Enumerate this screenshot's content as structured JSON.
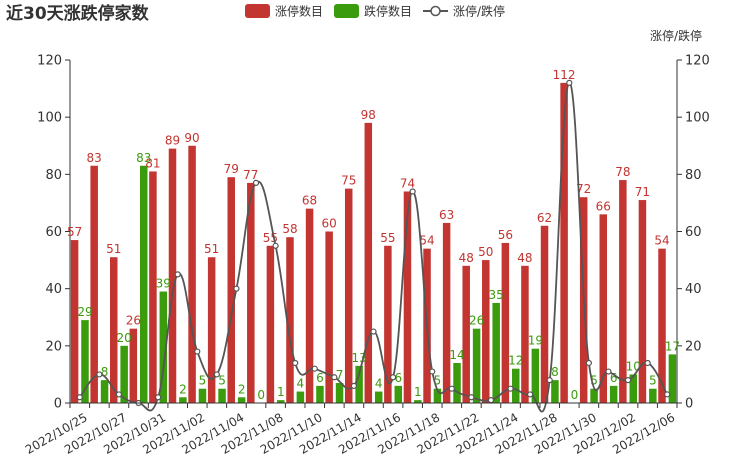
{
  "chart_data": {
    "type": "bar",
    "title": "近30天涨跌停家数",
    "y_right_label": "涨停/跌停",
    "ylim": [
      0,
      120
    ],
    "y_ticks": [
      0,
      20,
      40,
      60,
      80,
      100,
      120
    ],
    "categories": [
      "2022/10/25",
      "2022/10/26",
      "2022/10/27",
      "2022/10/28",
      "2022/10/31",
      "2022/11/01",
      "2022/11/02",
      "2022/11/03",
      "2022/11/04",
      "2022/11/07",
      "2022/11/08",
      "2022/11/09",
      "2022/11/10",
      "2022/11/11",
      "2022/11/14",
      "2022/11/15",
      "2022/11/16",
      "2022/11/17",
      "2022/11/18",
      "2022/11/21",
      "2022/11/22",
      "2022/11/23",
      "2022/11/24",
      "2022/11/25",
      "2022/11/28",
      "2022/11/29",
      "2022/11/30",
      "2022/12/01",
      "2022/12/02",
      "2022/12/05",
      "2022/12/06"
    ],
    "x_tick_labels": [
      "2022/10/25",
      "2022/10/27",
      "2022/10/31",
      "2022/11/02",
      "2022/11/04",
      "2022/11/08",
      "2022/11/10",
      "2022/11/14",
      "2022/11/16",
      "2022/11/18",
      "2022/11/22",
      "2022/11/24",
      "2022/11/28",
      "2022/11/30",
      "2022/12/02",
      "2022/12/06"
    ],
    "series": [
      {
        "name": "涨停数目",
        "type": "bar",
        "color": "#c23531",
        "values": [
          57,
          83,
          51,
          26,
          81,
          89,
          90,
          51,
          79,
          77,
          55,
          58,
          68,
          60,
          75,
          98,
          55,
          74,
          54,
          63,
          48,
          50,
          56,
          48,
          62,
          112,
          72,
          66,
          78,
          71,
          54
        ]
      },
      {
        "name": "跌停数目",
        "type": "bar",
        "color": "#3a9b0d",
        "values": [
          29,
          8,
          20,
          83,
          39,
          2,
          5,
          5,
          2,
          0,
          1,
          4,
          6,
          7,
          13,
          4,
          6,
          1,
          5,
          14,
          26,
          35,
          12,
          19,
          8,
          0,
          5,
          6,
          10,
          5,
          17
        ]
      },
      {
        "name": "涨停/跌停",
        "type": "line",
        "color": "#555555",
        "values": [
          2,
          10,
          3,
          0,
          2,
          45,
          18,
          10,
          40,
          77,
          55,
          14,
          12,
          9,
          6,
          25,
          9,
          74,
          11,
          5,
          2,
          1,
          5,
          3,
          8,
          112,
          14,
          11,
          8,
          14,
          3
        ]
      }
    ],
    "legend_position": "top-center",
    "grid": false
  }
}
